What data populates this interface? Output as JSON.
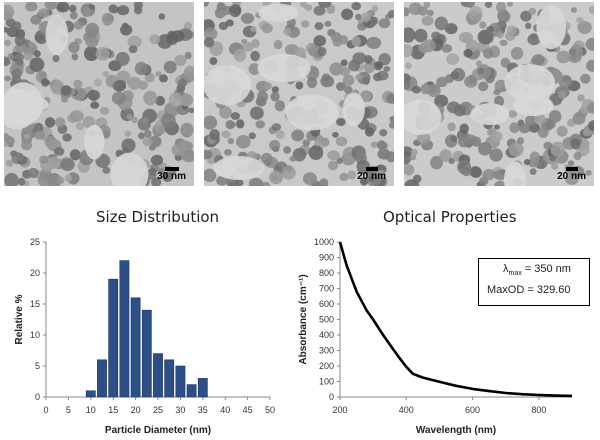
{
  "images": [
    {
      "scale_label": "30 nm",
      "tone": "#c4c4c4"
    },
    {
      "scale_label": "20 nm",
      "tone": "#c9c9c9"
    },
    {
      "scale_label": "20 nm",
      "tone": "#cbcbcb"
    }
  ],
  "chart_data": [
    {
      "type": "bar",
      "title": "Size Distribution",
      "xlabel": "Particle Diameter (nm)",
      "ylabel": "Relative %",
      "ylim": [
        0,
        25
      ],
      "yticks": [
        0,
        5,
        10,
        15,
        20,
        25
      ],
      "xlim": [
        0,
        50
      ],
      "xticks": [
        0,
        5,
        10,
        15,
        20,
        25,
        30,
        35,
        40,
        45,
        50
      ],
      "bar_color": "#2b4f86",
      "bars": [
        {
          "x": 10,
          "value": 1
        },
        {
          "x": 12.5,
          "value": 6
        },
        {
          "x": 15,
          "value": 19
        },
        {
          "x": 17.5,
          "value": 22
        },
        {
          "x": 20,
          "value": 16
        },
        {
          "x": 22.5,
          "value": 14
        },
        {
          "x": 25,
          "value": 7
        },
        {
          "x": 27.5,
          "value": 6
        },
        {
          "x": 30,
          "value": 5
        },
        {
          "x": 32.5,
          "value": 2
        },
        {
          "x": 35,
          "value": 3
        }
      ],
      "grid": false
    },
    {
      "type": "line",
      "title": "Optical Properties",
      "xlabel": "Wavelength (nm)",
      "ylabel": "Absorbance (cm⁻¹)",
      "xlim": [
        200,
        900
      ],
      "xticks": [
        200,
        400,
        600,
        800
      ],
      "ylim": [
        0,
        1000
      ],
      "yticks": [
        0,
        100,
        200,
        300,
        400,
        500,
        600,
        700,
        800,
        900,
        1000
      ],
      "series": [
        {
          "x": [
            200,
            220,
            250,
            280,
            300,
            330,
            360,
            380,
            400,
            420,
            450,
            500,
            550,
            600,
            650,
            700,
            750,
            800,
            850,
            900
          ],
          "y": [
            1000,
            850,
            680,
            560,
            500,
            400,
            310,
            250,
            195,
            150,
            125,
            98,
            72,
            52,
            38,
            26,
            18,
            13,
            9,
            7
          ]
        }
      ],
      "legend": {
        "lambda_label": "λ",
        "lambda_sub": "max",
        "lambda_value": " = 350 nm",
        "maxod_label": "MaxOD = ",
        "maxod_value": "329.60"
      },
      "grid": false
    }
  ]
}
